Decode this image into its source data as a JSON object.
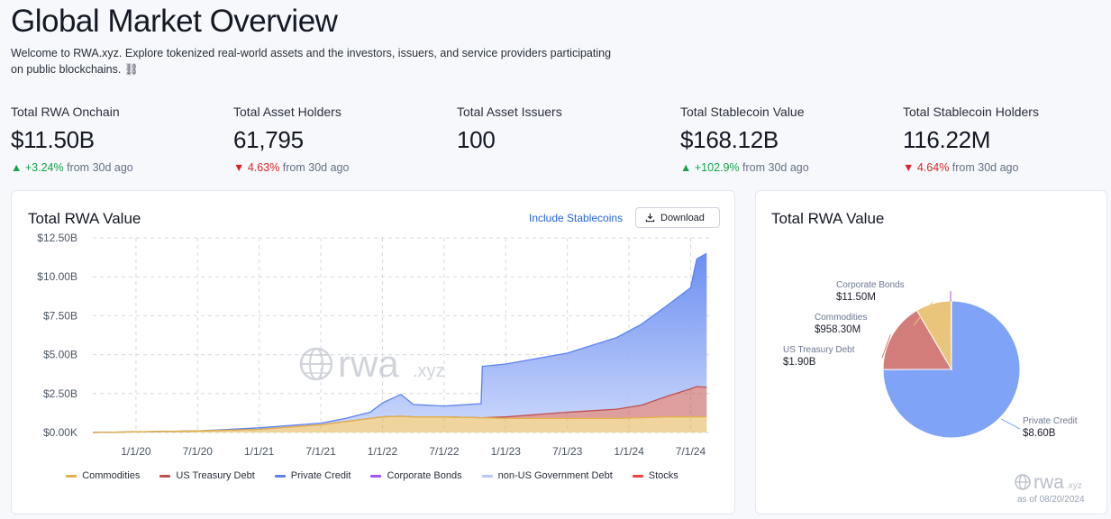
{
  "page": {
    "title": "Global Market Overview",
    "intro": "Welcome to RWA.xyz. Explore tokenized real-world assets and the investors, issuers, and service providers participating on public blockchains. ⛓"
  },
  "stats": [
    {
      "label": "Total RWA Onchain",
      "value": "$11.50B",
      "arrow": "▲",
      "change": "+3.24%",
      "suffix": "from 30d ago",
      "dir": "up"
    },
    {
      "label": "Total Asset Holders",
      "value": "61,795",
      "arrow": "▼",
      "change": "4.63%",
      "suffix": "from 30d ago",
      "dir": "down"
    },
    {
      "label": "Total Asset Issuers",
      "value": "100",
      "arrow": "",
      "change": "",
      "suffix": "",
      "dir": ""
    },
    {
      "label": "Total Stablecoin Value",
      "value": "$168.12B",
      "arrow": "▲",
      "change": "+102.9%",
      "suffix": "from 30d ago",
      "dir": "up"
    },
    {
      "label": "Total Stablecoin Holders",
      "value": "116.22M",
      "arrow": "▼",
      "change": "4.64%",
      "suffix": "from 30d ago",
      "dir": "down"
    }
  ],
  "area_card": {
    "title": "Total RWA Value",
    "include_label": "Include Stablecoins",
    "download_label": "Download",
    "watermark": "rwa",
    "watermark_suffix": ".xyz"
  },
  "pie_card": {
    "title": "Total RWA Value",
    "watermark": "rwa",
    "watermark_suffix": ".xyz",
    "as_of": "as of 08/20/2024"
  },
  "colors": {
    "private_credit": "#5b82f0",
    "us_treasury": "#c0504d",
    "commodities": "#e2b14c",
    "corporate_bonds": "#a855f7",
    "non_us_gov": "#b9c8f5",
    "stocks": "#ef4444"
  },
  "chart_data": [
    {
      "type": "area",
      "title": "Total RWA Value",
      "x_ticks": [
        "1/1/20",
        "7/1/20",
        "1/1/21",
        "7/1/21",
        "1/1/22",
        "7/1/22",
        "1/1/23",
        "7/1/23",
        "1/1/24",
        "7/1/24"
      ],
      "y_ticks": [
        "$0.00K",
        "$2.50B",
        "$5.00B",
        "$7.50B",
        "$10.00B",
        "$12.50B"
      ],
      "ylim": [
        0,
        12.5
      ],
      "y_unit": "B USD",
      "x_unit": "years since 2020-01-01",
      "xlim": [
        -0.35,
        4.65
      ],
      "grid": true,
      "legend_position": "bottom",
      "x": [
        -0.35,
        0.5,
        1.0,
        1.5,
        1.7,
        1.9,
        2.0,
        2.15,
        2.25,
        2.5,
        2.8,
        2.81,
        3.0,
        3.5,
        3.9,
        4.1,
        4.3,
        4.5,
        4.55,
        4.63
      ],
      "series": [
        {
          "name": "Commodities",
          "color": "#e2b14c",
          "values": [
            0.0,
            0.1,
            0.2,
            0.5,
            0.7,
            0.9,
            1.0,
            1.05,
            1.0,
            1.0,
            0.95,
            0.95,
            0.9,
            0.9,
            0.9,
            0.95,
            1.0,
            1.0,
            1.0,
            1.0
          ]
        },
        {
          "name": "US Treasury Debt",
          "color": "#c0504d",
          "values": [
            0.0,
            0.0,
            0.0,
            0.0,
            0.0,
            0.0,
            0.0,
            0.0,
            0.0,
            0.0,
            0.0,
            0.0,
            0.1,
            0.4,
            0.6,
            0.8,
            1.3,
            1.8,
            1.95,
            1.9
          ]
        },
        {
          "name": "Private Credit",
          "color": "#5b82f0",
          "values": [
            0.0,
            0.0,
            0.1,
            0.1,
            0.2,
            0.4,
            0.9,
            1.4,
            0.8,
            0.7,
            0.9,
            3.3,
            3.4,
            3.8,
            4.6,
            5.2,
            5.8,
            6.5,
            8.2,
            8.6
          ]
        },
        {
          "name": "Corporate Bonds",
          "color": "#a855f7",
          "values": [
            0,
            0,
            0,
            0,
            0,
            0,
            0,
            0,
            0,
            0,
            0,
            0,
            0,
            0,
            0,
            0,
            0,
            0,
            0,
            0
          ]
        },
        {
          "name": "non-US Government Debt",
          "color": "#b9c8f5",
          "values": [
            0,
            0,
            0,
            0,
            0,
            0,
            0,
            0,
            0,
            0,
            0,
            0,
            0,
            0,
            0,
            0,
            0,
            0,
            0,
            0
          ]
        },
        {
          "name": "Stocks",
          "color": "#ef4444",
          "values": [
            0,
            0,
            0,
            0,
            0,
            0,
            0,
            0,
            0,
            0,
            0,
            0,
            0,
            0,
            0,
            0,
            0,
            0,
            0,
            0
          ]
        }
      ]
    },
    {
      "type": "pie",
      "title": "Total RWA Value",
      "slices": [
        {
          "name": "Private Credit",
          "value_label": "$8.60B",
          "value": 8.6,
          "color": "#7fa3f7"
        },
        {
          "name": "US Treasury Debt",
          "value_label": "$1.90B",
          "value": 1.9,
          "color": "#d27d7a"
        },
        {
          "name": "Commodities",
          "value_label": "$958.30M",
          "value": 0.9583,
          "color": "#e8c57a"
        },
        {
          "name": "Corporate Bonds",
          "value_label": "$11.50M",
          "value": 0.0115,
          "color": "#a855f7"
        }
      ]
    }
  ]
}
